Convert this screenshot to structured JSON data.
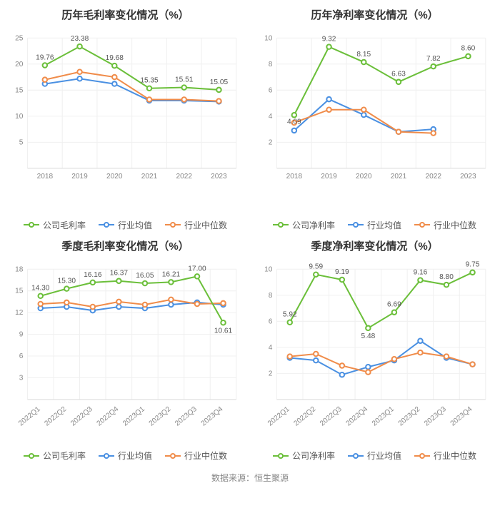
{
  "footer_text": "数据来源：恒生聚源",
  "colors": {
    "company": "#6bbf3a",
    "industry_avg": "#4a90e2",
    "industry_median": "#f08c4a",
    "axis": "#d9d9d9",
    "grid": "#f0f0f0",
    "tick_text": "#888888",
    "label_text": "#555555",
    "bg": "#ffffff"
  },
  "marker": {
    "radius": 3.2,
    "stroke_width": 2
  },
  "line_width": 2,
  "title_fontsize": 15,
  "tick_fontsize": 10,
  "legend_fontsize": 12,
  "label_fontsize": 10,
  "charts": [
    {
      "id": "annual_gross",
      "title": "历年毛利率变化情况（%）",
      "x_labels": [
        "2018",
        "2019",
        "2020",
        "2021",
        "2022",
        "2023"
      ],
      "x_rotate": 0,
      "ymin": 0,
      "ymax": 25,
      "ystep": 5,
      "show_value_labels_on": "company",
      "value_label_offset": -8,
      "series": [
        {
          "key": "company",
          "name": "公司毛利率",
          "color": "#6bbf3a",
          "values": [
            19.76,
            23.38,
            19.68,
            15.35,
            15.51,
            15.05
          ]
        },
        {
          "key": "industry_avg",
          "name": "行业均值",
          "color": "#4a90e2",
          "values": [
            16.2,
            17.2,
            16.2,
            13.0,
            13.0,
            12.8
          ]
        },
        {
          "key": "industry_median",
          "name": "行业中位数",
          "color": "#f08c4a",
          "values": [
            17.0,
            18.5,
            17.5,
            13.2,
            13.2,
            12.9
          ]
        }
      ],
      "legend": [
        {
          "label": "公司毛利率",
          "color": "#6bbf3a"
        },
        {
          "label": "行业均值",
          "color": "#4a90e2"
        },
        {
          "label": "行业中位数",
          "color": "#f08c4a"
        }
      ]
    },
    {
      "id": "annual_net",
      "title": "历年净利率变化情况（%）",
      "x_labels": [
        "2018",
        "2019",
        "2020",
        "2021",
        "2022",
        "2023"
      ],
      "x_rotate": 0,
      "ymin": 0,
      "ymax": 10,
      "ystep": 2,
      "show_value_labels_on": "company",
      "value_label_offset": -8,
      "override_label_offsets": {
        "0": 12
      },
      "series": [
        {
          "key": "company",
          "name": "公司净利率",
          "color": "#6bbf3a",
          "values": [
            4.09,
            9.32,
            8.15,
            6.63,
            7.82,
            8.6
          ]
        },
        {
          "key": "industry_avg",
          "name": "行业均值",
          "color": "#4a90e2",
          "values": [
            2.9,
            5.3,
            4.1,
            2.8,
            3.0,
            null
          ]
        },
        {
          "key": "industry_median",
          "name": "行业中位数",
          "color": "#f08c4a",
          "values": [
            3.5,
            4.5,
            4.5,
            2.8,
            2.7,
            null
          ]
        }
      ],
      "legend": [
        {
          "label": "公司净利率",
          "color": "#6bbf3a"
        },
        {
          "label": "行业均值",
          "color": "#4a90e2"
        },
        {
          "label": "行业中位数",
          "color": "#f08c4a"
        }
      ]
    },
    {
      "id": "quarter_gross",
      "title": "季度毛利率变化情况（%）",
      "x_labels": [
        "2022Q1",
        "2022Q2",
        "2022Q3",
        "2022Q4",
        "2023Q1",
        "2023Q2",
        "2023Q3",
        "2023Q4"
      ],
      "x_rotate": -40,
      "ymin": 0,
      "ymax": 18,
      "ystep": 3,
      "show_value_labels_on": "company",
      "value_label_offset": -8,
      "override_label_offsets": {
        "7": 14
      },
      "series": [
        {
          "key": "company",
          "name": "公司毛利率",
          "color": "#6bbf3a",
          "values": [
            14.3,
            15.3,
            16.16,
            16.37,
            16.05,
            16.21,
            17.0,
            10.61
          ]
        },
        {
          "key": "industry_avg",
          "name": "行业均值",
          "color": "#4a90e2",
          "values": [
            12.6,
            12.8,
            12.3,
            12.8,
            12.6,
            13.1,
            13.4,
            13.1
          ]
        },
        {
          "key": "industry_median",
          "name": "行业中位数",
          "color": "#f08c4a",
          "values": [
            13.2,
            13.4,
            12.8,
            13.5,
            13.1,
            13.8,
            13.2,
            13.3
          ]
        }
      ],
      "legend": [
        {
          "label": "公司毛利率",
          "color": "#6bbf3a"
        },
        {
          "label": "行业均值",
          "color": "#4a90e2"
        },
        {
          "label": "行业中位数",
          "color": "#f08c4a"
        }
      ]
    },
    {
      "id": "quarter_net",
      "title": "季度净利率变化情况（%）",
      "x_labels": [
        "2022Q1",
        "2022Q2",
        "2022Q3",
        "2022Q4",
        "2023Q1",
        "2023Q2",
        "2023Q3",
        "2023Q4"
      ],
      "x_rotate": -40,
      "ymin": 0,
      "ymax": 10,
      "ystep": 2,
      "show_value_labels_on": "company",
      "value_label_offset": -8,
      "override_label_offsets": {
        "3": 14
      },
      "series": [
        {
          "key": "company",
          "name": "公司净利率",
          "color": "#6bbf3a",
          "values": [
            5.92,
            9.59,
            9.19,
            5.48,
            6.69,
            9.16,
            8.8,
            9.75
          ]
        },
        {
          "key": "industry_avg",
          "name": "行业均值",
          "color": "#4a90e2",
          "values": [
            3.2,
            3.0,
            1.9,
            2.5,
            3.0,
            4.5,
            3.2,
            2.7
          ]
        },
        {
          "key": "industry_median",
          "name": "行业中位数",
          "color": "#f08c4a",
          "values": [
            3.3,
            3.5,
            2.6,
            2.1,
            3.1,
            3.6,
            3.3,
            2.7
          ]
        }
      ],
      "legend": [
        {
          "label": "公司净利率",
          "color": "#6bbf3a"
        },
        {
          "label": "行业均值",
          "color": "#4a90e2"
        },
        {
          "label": "行业中位数",
          "color": "#f08c4a"
        }
      ]
    }
  ]
}
